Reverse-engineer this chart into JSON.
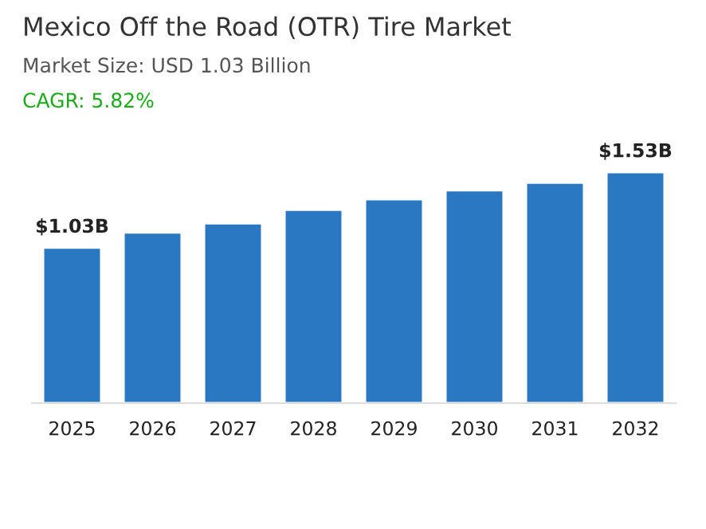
{
  "chart_data": {
    "type": "bar",
    "title": "Mexico Off the Road (OTR) Tire Market",
    "subtitle": "Market Size: USD 1.03 Billion",
    "annotations": [
      "CAGR: 5.82%"
    ],
    "categories": [
      "2025",
      "2026",
      "2027",
      "2028",
      "2029",
      "2030",
      "2031",
      "2032"
    ],
    "values": [
      1.03,
      1.13,
      1.19,
      1.28,
      1.35,
      1.41,
      1.46,
      1.53
    ],
    "value_labels": [
      "$1.03B",
      null,
      null,
      null,
      null,
      null,
      null,
      "$1.53B"
    ],
    "color": "#2b78c2",
    "grid": false,
    "legend": false
  }
}
